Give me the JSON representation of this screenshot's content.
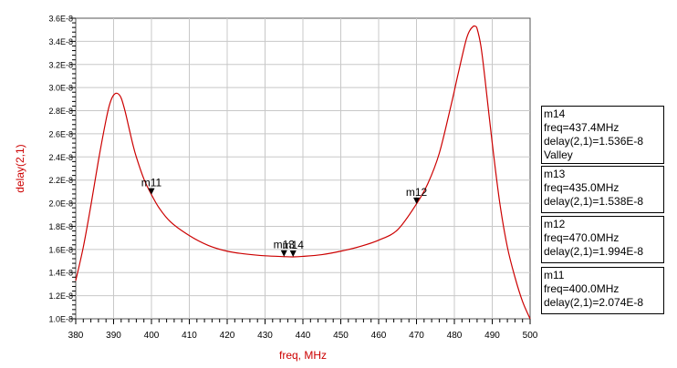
{
  "chart_data": {
    "type": "line",
    "xlabel": "freq, MHz",
    "ylabel": "delay(2,1)",
    "xlim": [
      380,
      500
    ],
    "ylim": [
      1e-08,
      3.6e-08
    ],
    "x_ticks": [
      "380",
      "390",
      "400",
      "410",
      "420",
      "430",
      "440",
      "450",
      "460",
      "470",
      "480",
      "490",
      "500"
    ],
    "y_ticks": [
      "1.0E-8",
      "1.2E-8",
      "1.4E-8",
      "1.6E-8",
      "1.8E-8",
      "2.0E-8",
      "2.2E-8",
      "2.4E-8",
      "2.6E-8",
      "2.8E-8",
      "3.0E-8",
      "3.2E-8",
      "3.4E-8",
      "3.6E-8"
    ],
    "series_color": "#cc0000",
    "grid": true,
    "series": [
      {
        "x": [
          380,
          382,
          384,
          386,
          388,
          389,
          390,
          391,
          392,
          393,
          394,
          395,
          396,
          398,
          400,
          402,
          405,
          410,
          415,
          420,
          425,
          430,
          435,
          437.4,
          440,
          445,
          450,
          455,
          460,
          465,
          470,
          473,
          476,
          479,
          481,
          483,
          484,
          485,
          485.5,
          486,
          487,
          488,
          490,
          492,
          494,
          496,
          498,
          500
        ],
        "y": [
          1.33e-08,
          1.62e-08,
          1.98e-08,
          2.37e-08,
          2.72e-08,
          2.86e-08,
          2.935e-08,
          2.95e-08,
          2.91e-08,
          2.8e-08,
          2.66e-08,
          2.52e-08,
          2.4e-08,
          2.21e-08,
          2.074e-08,
          1.96e-08,
          1.84e-08,
          1.72e-08,
          1.635e-08,
          1.585e-08,
          1.56e-08,
          1.545e-08,
          1.538e-08,
          1.536e-08,
          1.54e-08,
          1.555e-08,
          1.585e-08,
          1.625e-08,
          1.68e-08,
          1.77e-08,
          1.994e-08,
          2.17e-08,
          2.43e-08,
          2.83e-08,
          3.12e-08,
          3.4e-08,
          3.49e-08,
          3.53e-08,
          3.53e-08,
          3.51e-08,
          3.36e-08,
          3.1e-08,
          2.52e-08,
          2e-08,
          1.62e-08,
          1.36e-08,
          1.15e-08,
          1e-08
        ]
      }
    ],
    "markers": [
      {
        "name": "m11",
        "freq": 400.0,
        "value": 2.074e-08
      },
      {
        "name": "m12",
        "freq": 470.0,
        "value": 1.994e-08
      },
      {
        "name": "m13",
        "freq": 435.0,
        "value": 1.538e-08
      },
      {
        "name": "m14",
        "freq": 437.4,
        "value": 1.536e-08
      }
    ]
  },
  "marker_readouts": [
    {
      "name": "m14",
      "line1": "freq=437.4MHz",
      "line2": "delay(2,1)=1.536E-8",
      "line3": "Valley"
    },
    {
      "name": "m13",
      "line1": "freq=435.0MHz",
      "line2": "delay(2,1)=1.538E-8"
    },
    {
      "name": "m12",
      "line1": "freq=470.0MHz",
      "line2": "delay(2,1)=1.994E-8"
    },
    {
      "name": "m11",
      "line1": "freq=400.0MHz",
      "line2": "delay(2,1)=2.074E-8"
    }
  ]
}
